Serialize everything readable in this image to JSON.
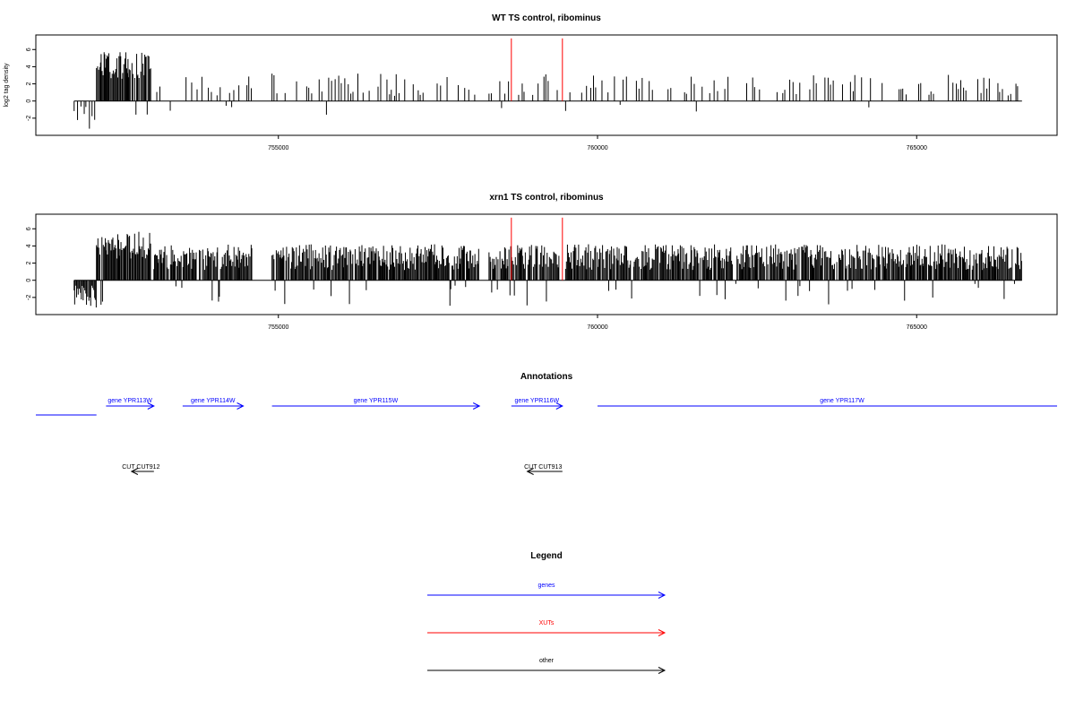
{
  "colors": {
    "axis": "#000000",
    "bar": "#000000",
    "highlight": "#ff0000",
    "gene": "#0000ff",
    "xut": "#ff0000",
    "other": "#000000"
  },
  "chart_data": [
    {
      "type": "bar",
      "title": "WT TS control, ribominus",
      "xlabel": "",
      "ylabel": "log2 tag density",
      "xlim": [
        751200,
        767200
      ],
      "ylim": [
        -4,
        7.7
      ],
      "x_ticks": [
        755000,
        760000,
        765000
      ],
      "x_tick_labels": [
        "755000",
        "760000",
        "765000"
      ],
      "y_ticks": [
        -2,
        0,
        2,
        4,
        6
      ],
      "y_tick_labels": [
        "-2",
        "0",
        "2",
        "4",
        "6"
      ],
      "data_start": 751800,
      "data_end": 766650,
      "seed": 7,
      "density": "sparse",
      "highlight_bars": [
        {
          "x": 758650,
          "y": 7.3
        },
        {
          "x": 759450,
          "y": 7.3
        }
      ]
    },
    {
      "type": "bar",
      "title": "xrn1 TS control, ribominus",
      "xlabel": "",
      "ylabel": "",
      "xlim": [
        751200,
        767200
      ],
      "ylim": [
        -4,
        7.7
      ],
      "x_ticks": [
        755000,
        760000,
        765000
      ],
      "x_tick_labels": [
        "755000",
        "760000",
        "765000"
      ],
      "y_ticks": [
        -2,
        0,
        2,
        4,
        6
      ],
      "y_tick_labels": [
        "-2",
        "0",
        "2",
        "4",
        "6"
      ],
      "data_start": 751800,
      "data_end": 766650,
      "seed": 19,
      "density": "dense",
      "highlight_bars": [
        {
          "x": 758650,
          "y": 7.3
        },
        {
          "x": 759450,
          "y": 7.3
        }
      ]
    }
  ],
  "annotations": {
    "title": "Annotations",
    "xlim": [
      751200,
      767200
    ],
    "genes": [
      {
        "label": "",
        "start": 751200,
        "end": 752150,
        "dir": "none",
        "row": 2
      },
      {
        "label": "gene YPR113W",
        "start": 752300,
        "end": 753050,
        "dir": "right",
        "row": 1
      },
      {
        "label": "gene YPR114W",
        "start": 753500,
        "end": 754450,
        "dir": "right",
        "row": 1
      },
      {
        "label": "gene YPR115W",
        "start": 754900,
        "end": 758150,
        "dir": "right",
        "row": 1
      },
      {
        "label": "gene YPR116W",
        "start": 758650,
        "end": 759450,
        "dir": "right",
        "row": 1
      },
      {
        "label": "gene YPR117W",
        "start": 760000,
        "end": 767200,
        "dir": "none",
        "row": 1
      }
    ],
    "cuts": [
      {
        "label": "CUT CUT912",
        "start": 752700,
        "end": 753050,
        "dir": "left"
      },
      {
        "label": "CUT CUT913",
        "start": 758900,
        "end": 759450,
        "dir": "left"
      }
    ]
  },
  "legend": {
    "title": "Legend",
    "items": [
      {
        "label": "genes",
        "color": "#0000ff"
      },
      {
        "label": "XUTs",
        "color": "#ff0000"
      },
      {
        "label": "other",
        "color": "#000000"
      }
    ]
  }
}
